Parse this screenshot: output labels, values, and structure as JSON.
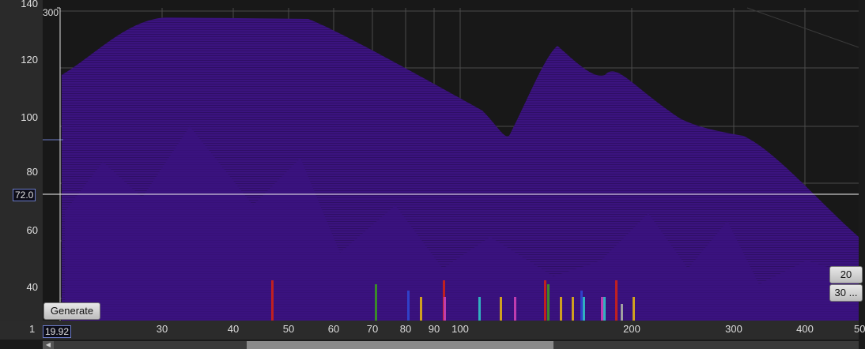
{
  "y_axis": {
    "ticks": [
      "140",
      "120",
      "100",
      "80",
      "60",
      "40"
    ]
  },
  "markers": {
    "top_marker": "300",
    "level_marker": "72.0",
    "freq_marker": "19.92",
    "freq_prefix": "1"
  },
  "x_axis": {
    "ticks": [
      "30",
      "40",
      "50",
      "60",
      "70",
      "80",
      "90",
      "100",
      "200",
      "300",
      "400",
      "50"
    ]
  },
  "buttons": {
    "generate": "Generate",
    "right_top": "20",
    "right_bottom": "30 ..."
  },
  "colors": {
    "accent": "#6b7bc8",
    "floor": "#3b137f",
    "background": "#181818"
  },
  "peaks": [
    {
      "color": "#c02020"
    },
    {
      "color": "#3a8a2a"
    },
    {
      "color": "#3040c8"
    },
    {
      "color": "#d0a020"
    },
    {
      "color": "#c02020"
    },
    {
      "color": "#c03cb0"
    },
    {
      "color": "#30b0c0"
    },
    {
      "color": "#d0a020"
    },
    {
      "color": "#c03cb0"
    },
    {
      "color": "#c02020"
    },
    {
      "color": "#3a8a2a"
    },
    {
      "color": "#d0a020"
    },
    {
      "color": "#d0a020"
    },
    {
      "color": "#3040c8"
    },
    {
      "color": "#30b0c0"
    },
    {
      "color": "#c03cb0"
    },
    {
      "color": "#30b0c0"
    },
    {
      "color": "#c02020"
    },
    {
      "color": "#a0a0a0"
    },
    {
      "color": "#d0a020"
    }
  ]
}
